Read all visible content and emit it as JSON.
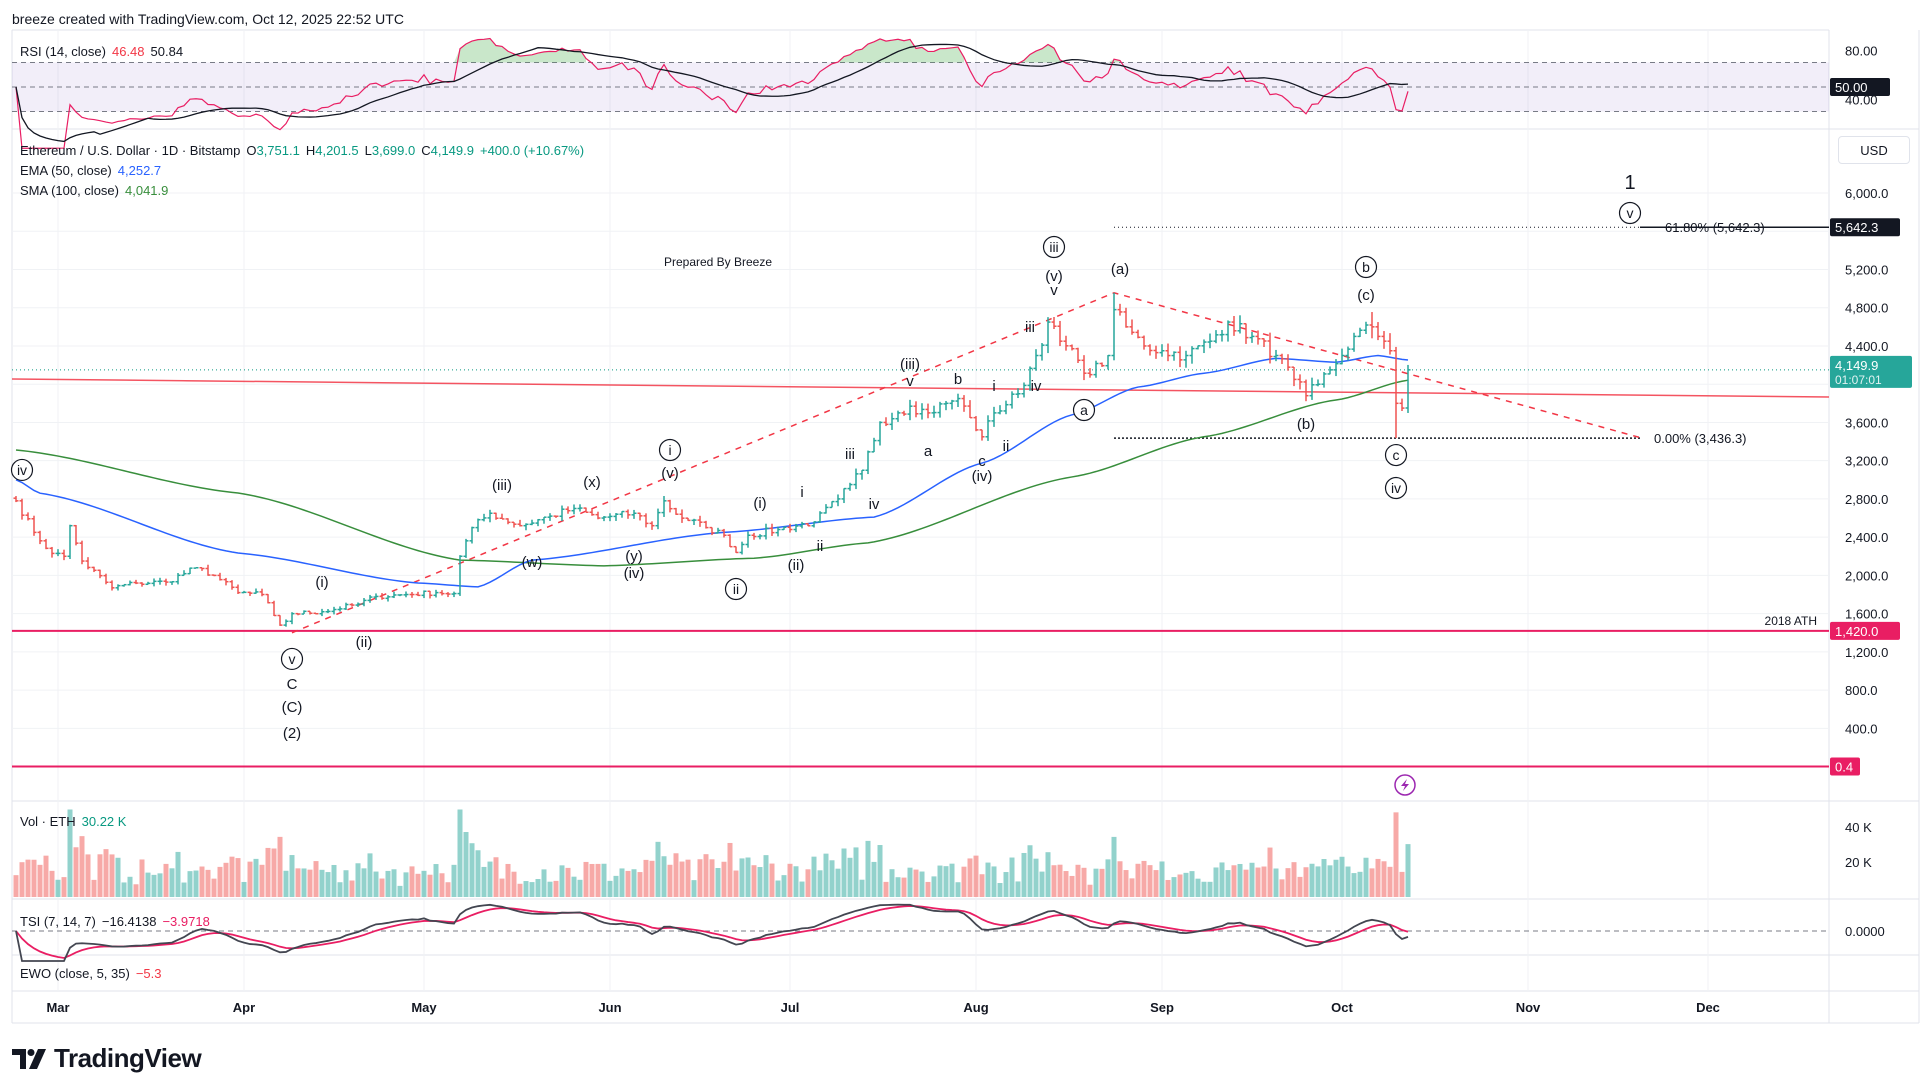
{
  "credit": "breeze created with TradingView.com, Oct 12, 2025 22:52 UTC",
  "rsi_legend": {
    "name": "RSI (14, close)",
    "rsi": "46.48",
    "signal": "50.84"
  },
  "price_legend": {
    "symbol": "Ethereum / U.S. Dollar · 1D · Bitstamp",
    "o_label": "O",
    "o": "3,751.1",
    "h_label": "H",
    "h": "4,201.5",
    "l_label": "L",
    "l": "3,699.0",
    "c_label": "C",
    "c": "4,149.9",
    "change": "+400.0 (+10.67%)"
  },
  "ema_legend": {
    "name": "EMA (50, close)",
    "value": "4,252.7"
  },
  "sma_legend": {
    "name": "SMA (100, close)",
    "value": "4,041.9"
  },
  "vol_legend": {
    "name": "Vol · ETH",
    "value": "30.22 K"
  },
  "tsi_legend": {
    "name": "TSI (7, 14, 7)",
    "value": "−16.4138",
    "signal": "−3.9718"
  },
  "ewo_legend": {
    "name": "EWO (close, 5, 35)",
    "value": "−5.3"
  },
  "currency": "USD",
  "logo_text": "TradingView",
  "colors": {
    "up": "#26a69a",
    "down": "#ef5350",
    "ema": "#2962ff",
    "sma": "#388e3c",
    "rsi": "#f23645",
    "hline": "#e91e63",
    "trend": "#f23645"
  },
  "chart_data": {
    "type": "ohlc",
    "title": "Ethereum / U.S. Dollar · 1D · Bitstamp",
    "x_range": [
      "2025-02-22",
      "2025-12-27"
    ],
    "ylim": [
      0,
      6600
    ],
    "price_ticks": [
      "6,000.0",
      "5,200.0",
      "4,800.0",
      "4,400.0",
      "3,600.0",
      "3,200.0",
      "2,800.0",
      "2,400.0",
      "2,000.0",
      "1,600.0",
      "1,200.0",
      "800.0",
      "400.0"
    ],
    "price_tick_values": [
      6000,
      5200,
      4800,
      4400,
      3600,
      3200,
      2800,
      2400,
      2000,
      1600,
      1200,
      800,
      400
    ],
    "months": [
      {
        "label": "Mar",
        "date": "2025-03-01"
      },
      {
        "label": "Apr",
        "date": "2025-04-01"
      },
      {
        "label": "May",
        "date": "2025-05-01"
      },
      {
        "label": "Jun",
        "date": "2025-06-01"
      },
      {
        "label": "Jul",
        "date": "2025-07-01"
      },
      {
        "label": "Aug",
        "date": "2025-08-01"
      },
      {
        "label": "Sep",
        "date": "2025-09-01"
      },
      {
        "label": "Oct",
        "date": "2025-10-01"
      },
      {
        "label": "Nov",
        "date": "2025-11-01"
      },
      {
        "label": "Dec",
        "date": "2025-12-01"
      }
    ],
    "close_keypoints": [
      [
        "2025-02-22",
        2780
      ],
      [
        "2025-02-25",
        2450
      ],
      [
        "2025-02-28",
        2230
      ],
      [
        "2025-03-02",
        2200
      ],
      [
        "2025-03-03",
        2520
      ],
      [
        "2025-03-05",
        2150
      ],
      [
        "2025-03-10",
        1870
      ],
      [
        "2025-03-14",
        1920
      ],
      [
        "2025-03-19",
        1930
      ],
      [
        "2025-03-24",
        2080
      ],
      [
        "2025-03-27",
        2000
      ],
      [
        "2025-03-31",
        1820
      ],
      [
        "2025-04-04",
        1800
      ],
      [
        "2025-04-07",
        1480
      ],
      [
        "2025-04-08",
        1520
      ],
      [
        "2025-04-09",
        1600
      ],
      [
        "2025-04-14",
        1620
      ],
      [
        "2025-04-20",
        1700
      ],
      [
        "2025-04-23",
        1780
      ],
      [
        "2025-04-28",
        1800
      ],
      [
        "2025-05-03",
        1820
      ],
      [
        "2025-05-06",
        1810
      ],
      [
        "2025-05-07",
        2200
      ],
      [
        "2025-05-09",
        2500
      ],
      [
        "2025-05-12",
        2650
      ],
      [
        "2025-05-17",
        2520
      ],
      [
        "2025-05-22",
        2620
      ],
      [
        "2025-05-26",
        2700
      ],
      [
        "2025-05-30",
        2600
      ],
      [
        "2025-06-05",
        2650
      ],
      [
        "2025-06-08",
        2520
      ],
      [
        "2025-06-10",
        2780
      ],
      [
        "2025-06-12",
        2640
      ],
      [
        "2025-06-17",
        2500
      ],
      [
        "2025-06-20",
        2420
      ],
      [
        "2025-06-22",
        2240
      ],
      [
        "2025-06-24",
        2420
      ],
      [
        "2025-06-29",
        2480
      ],
      [
        "2025-07-05",
        2560
      ],
      [
        "2025-07-09",
        2800
      ],
      [
        "2025-07-11",
        2950
      ],
      [
        "2025-07-13",
        3100
      ],
      [
        "2025-07-16",
        3600
      ],
      [
        "2025-07-19",
        3700
      ],
      [
        "2025-07-21",
        3770
      ],
      [
        "2025-07-24",
        3700
      ],
      [
        "2025-07-27",
        3800
      ],
      [
        "2025-07-29",
        3850
      ],
      [
        "2025-07-31",
        3650
      ],
      [
        "2025-08-02",
        3450
      ],
      [
        "2025-08-04",
        3700
      ],
      [
        "2025-08-08",
        3900
      ],
      [
        "2025-08-11",
        4300
      ],
      [
        "2025-08-13",
        4650
      ],
      [
        "2025-08-15",
        4450
      ],
      [
        "2025-08-18",
        4250
      ],
      [
        "2025-08-20",
        4100
      ],
      [
        "2025-08-23",
        4300
      ],
      [
        "2025-08-24",
        4780
      ],
      [
        "2025-08-26",
        4600
      ],
      [
        "2025-08-29",
        4400
      ],
      [
        "2025-09-01",
        4350
      ],
      [
        "2025-09-05",
        4300
      ],
      [
        "2025-09-09",
        4450
      ],
      [
        "2025-09-12",
        4650
      ],
      [
        "2025-09-16",
        4500
      ],
      [
        "2025-09-20",
        4300
      ],
      [
        "2025-09-23",
        4050
      ],
      [
        "2025-09-25",
        3880
      ],
      [
        "2025-09-27",
        4000
      ],
      [
        "2025-09-29",
        4150
      ],
      [
        "2025-10-01",
        4300
      ],
      [
        "2025-10-03",
        4500
      ],
      [
        "2025-10-06",
        4600
      ],
      [
        "2025-10-07",
        4500
      ],
      [
        "2025-10-08",
        4450
      ],
      [
        "2025-10-09",
        4350
      ],
      [
        "2025-10-10",
        3800
      ],
      [
        "2025-10-11",
        3750
      ],
      [
        "2025-10-12",
        4149.9
      ]
    ],
    "special_candles": [
      {
        "date": "2025-08-24",
        "high": 4956,
        "low": 4250
      },
      {
        "date": "2025-10-06",
        "high": 4755,
        "low": 4480
      },
      {
        "date": "2025-10-10",
        "high": 4390,
        "low": 3436.3
      },
      {
        "date": "2025-10-12",
        "open": 3751.1,
        "high": 4201.5,
        "low": 3699.0,
        "close": 4149.9
      }
    ],
    "ema50_keypoints": [
      [
        "2025-02-22",
        3000
      ],
      [
        "2025-02-26",
        2860
      ],
      [
        "2025-03-31",
        2234
      ],
      [
        "2025-04-30",
        1920
      ],
      [
        "2025-05-10",
        1880
      ],
      [
        "2025-05-19",
        2160
      ],
      [
        "2025-06-20",
        2450
      ],
      [
        "2025-07-15",
        2610
      ],
      [
        "2025-08-02",
        3175
      ],
      [
        "2025-08-17",
        3680
      ],
      [
        "2025-08-28",
        3970
      ],
      [
        "2025-09-08",
        4115
      ],
      [
        "2025-09-20",
        4270
      ],
      [
        "2025-09-30",
        4230
      ],
      [
        "2025-10-07",
        4300
      ],
      [
        "2025-10-12",
        4252.7
      ]
    ],
    "sma100_keypoints": [
      [
        "2025-02-22",
        3312
      ],
      [
        "2025-03-31",
        2862
      ],
      [
        "2025-05-07",
        2160
      ],
      [
        "2025-05-31",
        2100
      ],
      [
        "2025-06-25",
        2180
      ],
      [
        "2025-07-14",
        2340
      ],
      [
        "2025-08-17",
        3030
      ],
      [
        "2025-09-08",
        3450
      ],
      [
        "2025-09-30",
        3835
      ],
      [
        "2025-10-12",
        4041.9
      ]
    ],
    "current_price": {
      "value": 4149.9,
      "label": "4,149.9",
      "countdown": "01:07:01"
    },
    "hlines": [
      {
        "value": 1420,
        "label": "1,420.0",
        "text": "2018 ATH"
      },
      {
        "value": 0.4,
        "label": "0.4"
      }
    ],
    "fib": [
      {
        "value": 5642.3,
        "text": "61.80% (5,642.3)",
        "badge": "5,642.3",
        "from": "2025-08-24"
      },
      {
        "value": 3436.3,
        "text": "0.00% (3,436.3)",
        "from": "2025-08-24",
        "to": "2025-11-20"
      }
    ],
    "trend_line": {
      "from": [
        "2025-02-22",
        4054
      ],
      "to": [
        "2025-12-27",
        3866
      ]
    },
    "dashed_path": [
      [
        "2025-04-09",
        1400
      ],
      [
        "2025-08-24",
        4956
      ],
      [
        "2025-11-20",
        3436
      ]
    ],
    "rsi_ticks": [
      {
        "label": "80.00",
        "value": 80
      },
      {
        "label": "40.00",
        "value": 40
      }
    ],
    "rsi_badge": {
      "label": "50.00",
      "value": 50
    },
    "vol_ticks": [
      {
        "label": "40 K",
        "value": 40000
      },
      {
        "label": "20 K",
        "value": 20000
      }
    ],
    "tsi_tick": {
      "label": "0.0000",
      "value": 0
    },
    "annotations": [
      {
        "text": "iv",
        "circled": true,
        "date": "2025-02-23",
        "price": 3103
      },
      {
        "text": "(i)",
        "date": "2025-04-14",
        "price": 1931
      },
      {
        "text": "(ii)",
        "date": "2025-04-21",
        "price": 1303
      },
      {
        "text": "v",
        "circled": true,
        "date": "2025-04-09",
        "price": 1126
      },
      {
        "text": "C",
        "date": "2025-04-09",
        "price": 864
      },
      {
        "text": "(C)",
        "date": "2025-04-09",
        "price": 623
      },
      {
        "text": "(2)",
        "date": "2025-04-09",
        "price": 351
      },
      {
        "text": "(iii)",
        "date": "2025-05-14",
        "price": 2946
      },
      {
        "text": "(x)",
        "date": "2025-05-29",
        "price": 2977
      },
      {
        "text": "i",
        "circled": true,
        "date": "2025-06-11",
        "price": 3312
      },
      {
        "text": "(v)",
        "date": "2025-06-11",
        "price": 3071
      },
      {
        "text": "(w)",
        "date": "2025-05-19",
        "price": 2140
      },
      {
        "text": "(y)",
        "date": "2025-06-05",
        "price": 2203
      },
      {
        "text": "(iv)",
        "date": "2025-06-05",
        "price": 2025
      },
      {
        "text": "ii",
        "circled": true,
        "date": "2025-06-22",
        "price": 1858
      },
      {
        "text": "(i)",
        "date": "2025-06-26",
        "price": 2757
      },
      {
        "text": "(ii)",
        "date": "2025-07-02",
        "price": 2109
      },
      {
        "text": "i",
        "date": "2025-07-03",
        "price": 2872
      },
      {
        "text": "ii",
        "date": "2025-07-06",
        "price": 2308
      },
      {
        "text": "iii",
        "date": "2025-07-11",
        "price": 3270
      },
      {
        "text": "iv",
        "date": "2025-07-15",
        "price": 2747
      },
      {
        "text": "(iii)",
        "date": "2025-07-21",
        "price": 4211
      },
      {
        "text": "v",
        "date": "2025-07-21",
        "price": 4033
      },
      {
        "text": "a",
        "date": "2025-07-24",
        "price": 3301
      },
      {
        "text": "b",
        "date": "2025-07-29",
        "price": 4054
      },
      {
        "text": "c",
        "date": "2025-08-02",
        "price": 3197
      },
      {
        "text": "(iv)",
        "date": "2025-08-02",
        "price": 3040
      },
      {
        "text": "i",
        "date": "2025-08-04",
        "price": 3981
      },
      {
        "text": "ii",
        "date": "2025-08-06",
        "price": 3354
      },
      {
        "text": "iii",
        "date": "2025-08-10",
        "price": 4598
      },
      {
        "text": "iv",
        "date": "2025-08-11",
        "price": 3981
      },
      {
        "text": "iii",
        "circled": true,
        "date": "2025-08-14",
        "price": 5435
      },
      {
        "text": "(v)",
        "date": "2025-08-14",
        "price": 5132
      },
      {
        "text": "v",
        "date": "2025-08-14",
        "price": 4985
      },
      {
        "text": "(a)",
        "date": "2025-08-25",
        "price": 5205
      },
      {
        "text": "a",
        "circled": true,
        "date": "2025-08-19",
        "price": 3730
      },
      {
        "text": "(b)",
        "date": "2025-09-25",
        "price": 3584
      },
      {
        "text": "b",
        "circled": true,
        "date": "2025-10-05",
        "price": 5226
      },
      {
        "text": "(c)",
        "date": "2025-10-05",
        "price": 4933
      },
      {
        "text": "c",
        "circled": true,
        "date": "2025-10-10",
        "price": 3259
      },
      {
        "text": "iv",
        "circled": true,
        "date": "2025-10-10",
        "price": 2914
      },
      {
        "text": "1",
        "date": "2025-11-18",
        "price": 6115,
        "big": true
      },
      {
        "text": "v",
        "circled": true,
        "date": "2025-11-18",
        "price": 5791
      }
    ],
    "note": {
      "text": "Prepared By Breeze",
      "date": "2025-06-19",
      "price": 5278
    }
  }
}
